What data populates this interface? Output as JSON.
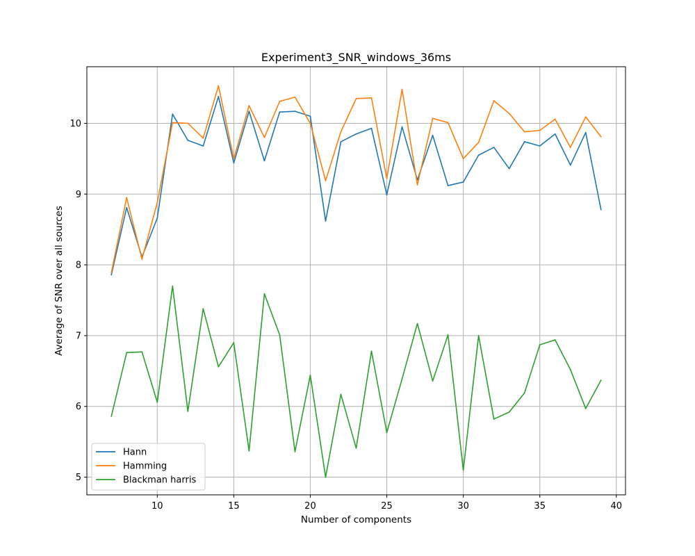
{
  "chart_data": {
    "type": "line",
    "title": "Experiment3_SNR_windows_36ms",
    "xlabel": "Number of components",
    "ylabel": "Average of SNR over all sources",
    "xlim": [
      5.4,
      40.6
    ],
    "ylim": [
      4.75,
      10.8
    ],
    "xticks": [
      10,
      15,
      20,
      25,
      30,
      35,
      40
    ],
    "yticks": [
      5,
      6,
      7,
      8,
      9,
      10
    ],
    "grid": true,
    "legend_position": "lower-left",
    "x": [
      7,
      8,
      9,
      10,
      11,
      12,
      13,
      14,
      15,
      16,
      17,
      18,
      19,
      20,
      21,
      22,
      23,
      24,
      25,
      26,
      27,
      28,
      29,
      30,
      31,
      32,
      33,
      34,
      35,
      36,
      37,
      38,
      39
    ],
    "series": [
      {
        "name": "Hann",
        "color": "#1f77b4",
        "values": [
          7.86,
          8.81,
          8.11,
          8.66,
          10.13,
          9.76,
          9.68,
          10.38,
          9.44,
          10.17,
          9.47,
          10.16,
          10.17,
          10.1,
          8.62,
          9.74,
          9.85,
          9.93,
          8.99,
          9.95,
          9.2,
          9.83,
          9.12,
          9.17,
          9.55,
          9.66,
          9.36,
          9.74,
          9.68,
          9.85,
          9.41,
          9.87,
          8.78
        ]
      },
      {
        "name": "Hamming",
        "color": "#ff7f0e",
        "values": [
          7.89,
          8.95,
          8.08,
          8.88,
          10.01,
          10.0,
          9.79,
          10.53,
          9.5,
          10.25,
          9.8,
          10.31,
          10.37,
          10.0,
          9.19,
          9.88,
          10.35,
          10.36,
          9.22,
          10.48,
          9.13,
          10.07,
          10.01,
          9.5,
          9.73,
          10.32,
          10.14,
          9.88,
          9.9,
          10.06,
          9.66,
          10.09,
          9.81
        ]
      },
      {
        "name": "Blackman harris",
        "color": "#2ca02c",
        "values": [
          5.86,
          6.76,
          6.77,
          6.06,
          7.7,
          5.93,
          7.38,
          6.56,
          6.9,
          5.37,
          7.59,
          7.01,
          5.36,
          6.44,
          5.0,
          6.17,
          5.41,
          6.78,
          5.63,
          6.39,
          7.17,
          6.36,
          7.01,
          5.1,
          7.0,
          5.82,
          5.92,
          6.19,
          6.87,
          6.94,
          6.52,
          5.97,
          6.37
        ]
      }
    ]
  }
}
